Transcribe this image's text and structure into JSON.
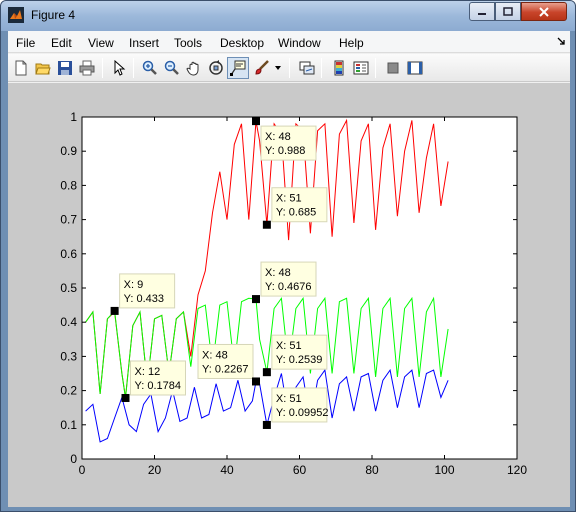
{
  "window": {
    "title": "Figure 4"
  },
  "menu": [
    "File",
    "Edit",
    "View",
    "Insert",
    "Tools",
    "Desktop",
    "Window",
    "Help"
  ],
  "toolbar": [
    "new-figure-icon",
    "open-file-icon",
    "save-icon",
    "print-icon",
    "pointer-icon",
    "zoom-in-icon",
    "zoom-out-icon",
    "pan-icon",
    "rotate-3d-icon",
    "data-cursor-icon",
    "brush-icon",
    "link-plot-icon",
    "colorbar-icon",
    "legend-icon",
    "hide-plot-tools-icon",
    "show-plot-tools-icon"
  ],
  "chart_data": {
    "type": "line",
    "xlim": [
      0,
      120
    ],
    "ylim": [
      0,
      1
    ],
    "xticks": [
      "0",
      "20",
      "40",
      "60",
      "80",
      "100",
      "120"
    ],
    "yticks": [
      "0",
      "0.1",
      "0.2",
      "0.3",
      "0.4",
      "0.5",
      "0.6",
      "0.7",
      "0.8",
      "0.9",
      "1"
    ],
    "series": [
      {
        "color": "#ff0000",
        "points": [
          [
            1,
            0.4
          ],
          [
            3,
            0.43
          ],
          [
            5,
            0.19
          ],
          [
            7,
            0.41
          ],
          [
            9,
            0.43
          ],
          [
            11,
            0.25
          ],
          [
            12,
            0.18
          ],
          [
            14,
            0.39
          ],
          [
            16,
            0.43
          ],
          [
            18,
            0.22
          ],
          [
            20,
            0.41
          ],
          [
            22,
            0.42
          ],
          [
            24,
            0.25
          ],
          [
            26,
            0.41
          ],
          [
            28,
            0.43
          ],
          [
            30,
            0.3
          ],
          [
            32,
            0.48
          ],
          [
            34,
            0.55
          ],
          [
            36,
            0.72
          ],
          [
            38,
            0.84
          ],
          [
            40,
            0.7
          ],
          [
            42,
            0.92
          ],
          [
            44,
            0.98
          ],
          [
            46,
            0.7
          ],
          [
            48,
            0.988
          ],
          [
            49,
            0.93
          ],
          [
            51,
            0.685
          ],
          [
            53,
            0.98
          ],
          [
            55,
            0.95
          ],
          [
            57,
            0.64
          ],
          [
            59,
            0.98
          ],
          [
            61,
            0.96
          ],
          [
            63,
            0.66
          ],
          [
            65,
            0.96
          ],
          [
            67,
            0.98
          ],
          [
            69,
            0.65
          ],
          [
            71,
            0.95
          ],
          [
            73,
            0.99
          ],
          [
            75,
            0.69
          ],
          [
            77,
            0.93
          ],
          [
            79,
            0.98
          ],
          [
            81,
            0.67
          ],
          [
            83,
            0.91
          ],
          [
            85,
            0.98
          ],
          [
            87,
            0.71
          ],
          [
            89,
            0.9
          ],
          [
            91,
            0.99
          ],
          [
            93,
            0.72
          ],
          [
            95,
            0.88
          ],
          [
            97,
            0.98
          ],
          [
            99,
            0.74
          ],
          [
            101,
            0.87
          ]
        ]
      },
      {
        "color": "#00ff00",
        "points": [
          [
            1,
            0.4
          ],
          [
            3,
            0.43
          ],
          [
            5,
            0.19
          ],
          [
            7,
            0.41
          ],
          [
            9,
            0.433
          ],
          [
            11,
            0.25
          ],
          [
            12,
            0.1784
          ],
          [
            14,
            0.39
          ],
          [
            16,
            0.43
          ],
          [
            18,
            0.22
          ],
          [
            20,
            0.41
          ],
          [
            22,
            0.42
          ],
          [
            24,
            0.25
          ],
          [
            26,
            0.41
          ],
          [
            28,
            0.43
          ],
          [
            30,
            0.27
          ],
          [
            32,
            0.44
          ],
          [
            34,
            0.45
          ],
          [
            36,
            0.27
          ],
          [
            38,
            0.45
          ],
          [
            40,
            0.46
          ],
          [
            42,
            0.27
          ],
          [
            44,
            0.46
          ],
          [
            46,
            0.47
          ],
          [
            48,
            0.4676
          ],
          [
            49,
            0.35
          ],
          [
            51,
            0.2539
          ],
          [
            53,
            0.44
          ],
          [
            55,
            0.47
          ],
          [
            57,
            0.27
          ],
          [
            59,
            0.44
          ],
          [
            61,
            0.47
          ],
          [
            63,
            0.25
          ],
          [
            65,
            0.44
          ],
          [
            67,
            0.47
          ],
          [
            69,
            0.25
          ],
          [
            71,
            0.46
          ],
          [
            73,
            0.47
          ],
          [
            75,
            0.25
          ],
          [
            77,
            0.44
          ],
          [
            79,
            0.47
          ],
          [
            81,
            0.24
          ],
          [
            83,
            0.44
          ],
          [
            85,
            0.47
          ],
          [
            87,
            0.24
          ],
          [
            89,
            0.44
          ],
          [
            91,
            0.47
          ],
          [
            93,
            0.24
          ],
          [
            95,
            0.43
          ],
          [
            97,
            0.47
          ],
          [
            99,
            0.24
          ],
          [
            101,
            0.38
          ]
        ]
      },
      {
        "color": "#0000ff",
        "points": [
          [
            1,
            0.14
          ],
          [
            3,
            0.16
          ],
          [
            5,
            0.05
          ],
          [
            7,
            0.06
          ],
          [
            9,
            0.12
          ],
          [
            11,
            0.18
          ],
          [
            13,
            0.1
          ],
          [
            15,
            0.08
          ],
          [
            17,
            0.16
          ],
          [
            19,
            0.19
          ],
          [
            21,
            0.08
          ],
          [
            23,
            0.12
          ],
          [
            25,
            0.2
          ],
          [
            27,
            0.11
          ],
          [
            29,
            0.12
          ],
          [
            31,
            0.21
          ],
          [
            33,
            0.12
          ],
          [
            35,
            0.13
          ],
          [
            37,
            0.22
          ],
          [
            39,
            0.14
          ],
          [
            41,
            0.15
          ],
          [
            43,
            0.23
          ],
          [
            45,
            0.14
          ],
          [
            47,
            0.17
          ],
          [
            48,
            0.2267
          ],
          [
            49,
            0.22
          ],
          [
            51,
            0.09952
          ],
          [
            53,
            0.18
          ],
          [
            55,
            0.25
          ],
          [
            57,
            0.12
          ],
          [
            59,
            0.21
          ],
          [
            61,
            0.24
          ],
          [
            63,
            0.11
          ],
          [
            65,
            0.23
          ],
          [
            67,
            0.26
          ],
          [
            69,
            0.12
          ],
          [
            71,
            0.22
          ],
          [
            73,
            0.24
          ],
          [
            75,
            0.14
          ],
          [
            77,
            0.24
          ],
          [
            79,
            0.25
          ],
          [
            81,
            0.14
          ],
          [
            83,
            0.23
          ],
          [
            85,
            0.26
          ],
          [
            87,
            0.15
          ],
          [
            89,
            0.24
          ],
          [
            91,
            0.26
          ],
          [
            93,
            0.15
          ],
          [
            95,
            0.25
          ],
          [
            97,
            0.26
          ],
          [
            99,
            0.18
          ],
          [
            101,
            0.23
          ]
        ]
      }
    ],
    "datatips": [
      {
        "x": 48,
        "y": 0.988,
        "xlabel": "X: 48",
        "ylabel": "Y: 0.988",
        "box": "right-down"
      },
      {
        "x": 51,
        "y": 0.685,
        "xlabel": "X: 51",
        "ylabel": "Y: 0.685",
        "box": "right-up"
      },
      {
        "x": 48,
        "y": 0.4676,
        "xlabel": "X: 48",
        "ylabel": "Y: 0.4676",
        "box": "right-up"
      },
      {
        "x": 9,
        "y": 0.433,
        "xlabel": "X: 9",
        "ylabel": "Y: 0.433",
        "box": "right-up"
      },
      {
        "x": 12,
        "y": 0.1784,
        "xlabel": "X: 12",
        "ylabel": "Y: 0.1784",
        "box": "right-up"
      },
      {
        "x": 48,
        "y": 0.2267,
        "xlabel": "X: 48",
        "ylabel": "Y: 0.2267",
        "box": "left-up"
      },
      {
        "x": 51,
        "y": 0.2539,
        "xlabel": "X: 51",
        "ylabel": "Y: 0.2539",
        "box": "right-up"
      },
      {
        "x": 51,
        "y": 0.09952,
        "xlabel": "X: 51",
        "ylabel": "Y: 0.09952",
        "box": "right-up"
      }
    ]
  }
}
